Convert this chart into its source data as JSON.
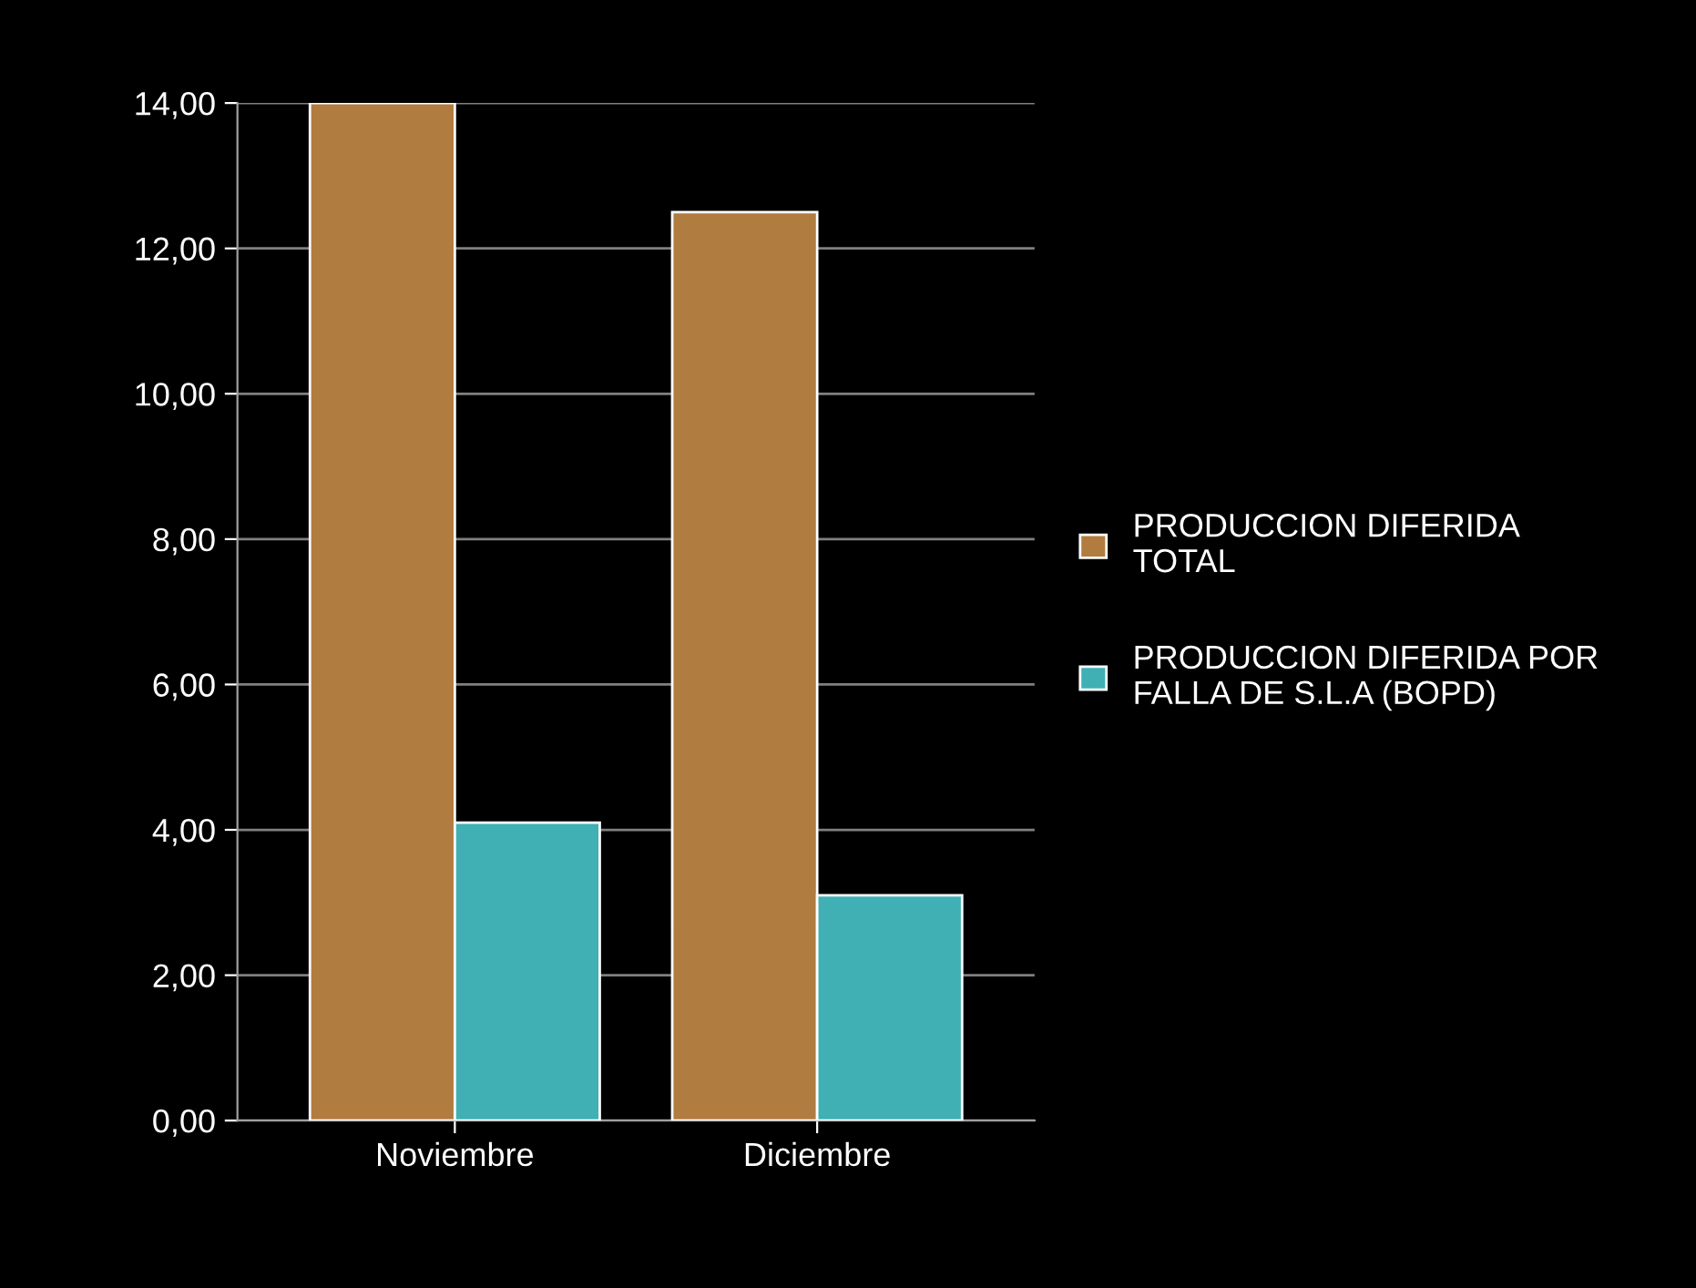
{
  "chart_data": {
    "type": "bar",
    "categories": [
      "Noviembre",
      "Diciembre"
    ],
    "series": [
      {
        "name": "PRODUCCION DIFERIDA TOTAL",
        "color": "#b07c40",
        "values": [
          14.0,
          12.5
        ]
      },
      {
        "name": "PRODUCCION DIFERIDA POR FALLA DE S.L.A (BOPD)",
        "color": "#40b0b4",
        "values": [
          4.1,
          3.1
        ]
      }
    ],
    "ylim": [
      0,
      14
    ],
    "yticks": [
      {
        "value": 0,
        "label": "0,00"
      },
      {
        "value": 2,
        "label": "2,00"
      },
      {
        "value": 4,
        "label": "4,00"
      },
      {
        "value": 6,
        "label": "6,00"
      },
      {
        "value": 8,
        "label": "8,00"
      },
      {
        "value": 10,
        "label": "10,00"
      },
      {
        "value": 12,
        "label": "12,00"
      },
      {
        "value": 14,
        "label": "14,00"
      }
    ],
    "grid": "y",
    "legend": "right"
  }
}
